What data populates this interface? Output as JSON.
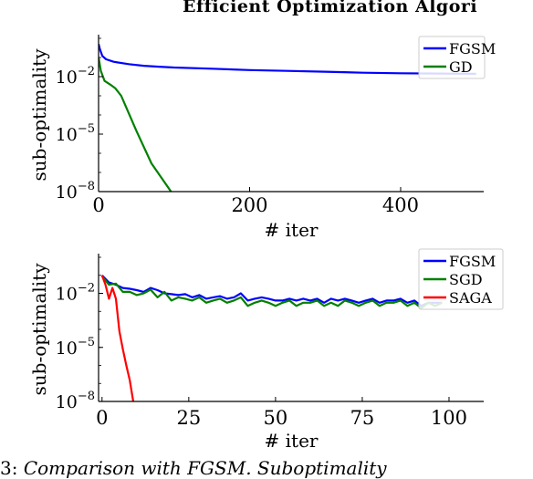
{
  "header": {
    "text": "Efficient Optimization Algori"
  },
  "caption": {
    "number": "3:",
    "text": "Comparison with FGSM. Suboptimality"
  },
  "chart_data": [
    {
      "type": "line",
      "xlabel": "# iter",
      "ylabel": "sub-optimality",
      "yscale": "log",
      "xlim": [
        0,
        510
      ],
      "ylim": [
        1e-08,
        1.0
      ],
      "x_ticks": [
        0,
        200,
        400
      ],
      "y_ticks": [
        {
          "value": 1e-08,
          "base": "10",
          "exp": "−8"
        },
        {
          "value": 1e-05,
          "base": "10",
          "exp": "−5"
        },
        {
          "value": 0.01,
          "base": "10",
          "exp": "−2"
        }
      ],
      "legend_position": "top-right",
      "series": [
        {
          "name": "FGSM",
          "color": "#0000ff",
          "x": [
            0,
            2,
            5,
            10,
            20,
            40,
            60,
            80,
            100,
            150,
            200,
            250,
            300,
            350,
            400,
            450,
            500
          ],
          "y": [
            0.5,
            0.25,
            0.12,
            0.08,
            0.06,
            0.045,
            0.037,
            0.033,
            0.03,
            0.026,
            0.022,
            0.02,
            0.018,
            0.016,
            0.015,
            0.0145,
            0.014
          ]
        },
        {
          "name": "GD",
          "color": "#008000",
          "x": [
            0,
            3,
            8,
            15,
            22,
            30,
            50,
            70,
            96
          ],
          "y": [
            0.1,
            0.02,
            0.006,
            0.004,
            0.0025,
            0.001,
            1.5e-05,
            3e-07,
            1e-08
          ]
        }
      ]
    },
    {
      "type": "line",
      "xlabel": "# iter",
      "ylabel": "sub-optimality",
      "yscale": "log",
      "xlim": [
        -1,
        110
      ],
      "ylim": [
        1e-08,
        1.0
      ],
      "x_ticks": [
        0,
        25,
        50,
        75,
        100
      ],
      "y_ticks": [
        {
          "value": 1e-08,
          "base": "10",
          "exp": "−8"
        },
        {
          "value": 1e-05,
          "base": "10",
          "exp": "−5"
        },
        {
          "value": 0.01,
          "base": "10",
          "exp": "−2"
        }
      ],
      "legend_position": "top-right",
      "series": [
        {
          "name": "FGSM",
          "color": "#0000ff",
          "x": [
            0,
            2,
            4,
            6,
            8,
            10,
            12,
            14,
            16,
            18,
            20,
            22,
            24,
            26,
            28,
            30,
            32,
            34,
            36,
            38,
            40,
            42,
            44,
            46,
            48,
            50,
            52,
            54,
            56,
            58,
            60,
            62,
            64,
            66,
            68,
            70,
            72,
            74,
            76,
            78,
            80,
            82,
            84,
            86,
            88,
            90,
            92,
            94,
            96,
            98
          ],
          "y": [
            0.1,
            0.04,
            0.03,
            0.02,
            0.018,
            0.015,
            0.012,
            0.02,
            0.015,
            0.01,
            0.009,
            0.008,
            0.009,
            0.006,
            0.008,
            0.005,
            0.006,
            0.007,
            0.005,
            0.006,
            0.01,
            0.004,
            0.005,
            0.006,
            0.005,
            0.004,
            0.004,
            0.005,
            0.004,
            0.005,
            0.004,
            0.005,
            0.003,
            0.005,
            0.004,
            0.005,
            0.004,
            0.003,
            0.004,
            0.005,
            0.003,
            0.004,
            0.004,
            0.005,
            0.003,
            0.004,
            0.002,
            0.003,
            0.003,
            0.003
          ]
        },
        {
          "name": "SGD",
          "color": "#008000",
          "x": [
            0,
            2,
            4,
            6,
            8,
            10,
            12,
            14,
            16,
            18,
            20,
            22,
            24,
            26,
            28,
            30,
            32,
            34,
            36,
            38,
            40,
            42,
            44,
            46,
            48,
            50,
            52,
            54,
            56,
            58,
            60,
            62,
            64,
            66,
            68,
            70,
            72,
            74,
            76,
            78,
            80,
            82,
            84,
            86,
            88,
            90,
            92,
            94,
            96,
            98
          ],
          "y": [
            0.09,
            0.03,
            0.035,
            0.012,
            0.012,
            0.008,
            0.01,
            0.016,
            0.006,
            0.012,
            0.004,
            0.006,
            0.005,
            0.004,
            0.006,
            0.003,
            0.004,
            0.005,
            0.003,
            0.004,
            0.006,
            0.002,
            0.003,
            0.004,
            0.003,
            0.002,
            0.003,
            0.004,
            0.002,
            0.003,
            0.003,
            0.004,
            0.002,
            0.003,
            0.002,
            0.004,
            0.003,
            0.002,
            0.003,
            0.004,
            0.002,
            0.003,
            0.003,
            0.004,
            0.002,
            0.003,
            0.0015,
            0.003,
            0.002,
            0.003
          ]
        },
        {
          "name": "SAGA",
          "color": "#ff0000",
          "x": [
            0,
            1,
            2,
            3,
            4,
            5,
            6,
            7,
            8,
            9
          ],
          "y": [
            0.1,
            0.03,
            0.005,
            0.02,
            0.005,
            8e-05,
            8e-06,
            1e-06,
            1.5e-07,
            1e-08
          ]
        }
      ]
    }
  ]
}
